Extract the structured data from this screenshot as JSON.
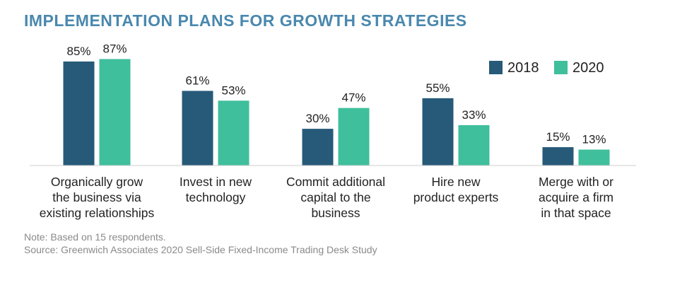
{
  "title": "IMPLEMENTATION PLANS FOR GROWTH STRATEGIES",
  "notes": {
    "note": "Note: Based on 15 respondents.",
    "source": "Source: Greenwich Associates 2020 Sell-Side Fixed-Income Trading Desk Study"
  },
  "colors": {
    "title": "#4a88ae",
    "s2018": "#275a78",
    "s2020": "#3fbf9c",
    "text": "#222222"
  },
  "chart_data": {
    "type": "bar",
    "categories": [
      [
        "Organically grow",
        "the business via",
        "existing relationships"
      ],
      [
        "Invest in new",
        "technology"
      ],
      [
        "Commit additional",
        "capital to the",
        "business"
      ],
      [
        "Hire new",
        "product experts"
      ],
      [
        "Merge with or",
        "acquire a firm",
        "in that space"
      ]
    ],
    "series": [
      {
        "name": "2018",
        "values": [
          85,
          61,
          30,
          55,
          15
        ],
        "labels": [
          "85%",
          "61%",
          "30%",
          "55%",
          "15%"
        ]
      },
      {
        "name": "2020",
        "values": [
          87,
          53,
          47,
          33,
          13
        ],
        "labels": [
          "87%",
          "53%",
          "47%",
          "33%",
          "13%"
        ]
      }
    ],
    "ylim": [
      0,
      100
    ],
    "legend": "top-right",
    "grid": false
  }
}
